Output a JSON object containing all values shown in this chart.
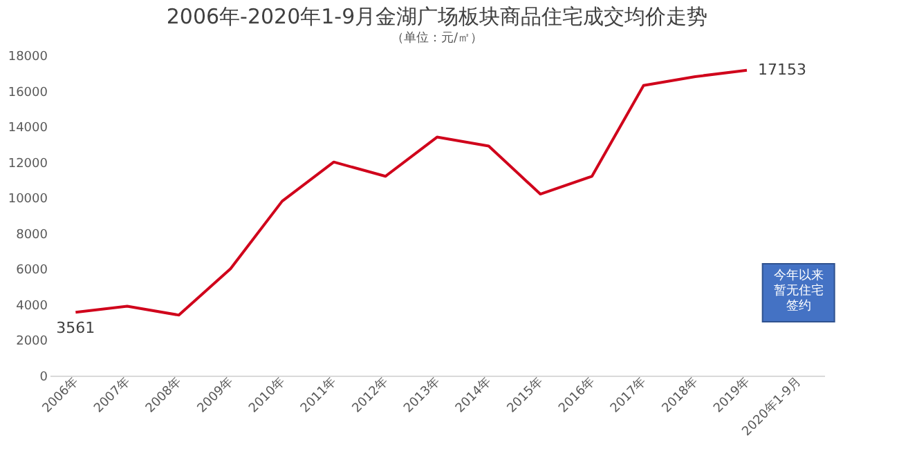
{
  "chart_data": {
    "type": "line",
    "title": "2006年-2020年1-9月金湖广场板块商品住宅成交均价走势",
    "subtitle": "（单位：元/㎡）",
    "categories": [
      "2006年",
      "2007年",
      "2008年",
      "2009年",
      "2010年",
      "2011年",
      "2012年",
      "2013年",
      "2014年",
      "2015年",
      "2016年",
      "2017年",
      "2018年",
      "2019年",
      "2020年1-9月"
    ],
    "series": [
      {
        "color": "#d0021b",
        "values": [
          3561,
          3900,
          3400,
          6000,
          9800,
          12000,
          11200,
          13400,
          12900,
          10200,
          11200,
          16300,
          16800,
          17153,
          null
        ],
        "value_labels": [
          "3561",
          null,
          null,
          null,
          null,
          null,
          null,
          null,
          null,
          null,
          null,
          null,
          null,
          "17153",
          null
        ]
      }
    ],
    "ylim": [
      0,
      18000
    ],
    "yticks": [
      0,
      2000,
      4000,
      6000,
      8000,
      10000,
      12000,
      14000,
      16000,
      18000
    ],
    "grid": false,
    "marker": "none",
    "line_style": "solid",
    "annotations": [
      "今年以来暂无住宅签约"
    ]
  }
}
